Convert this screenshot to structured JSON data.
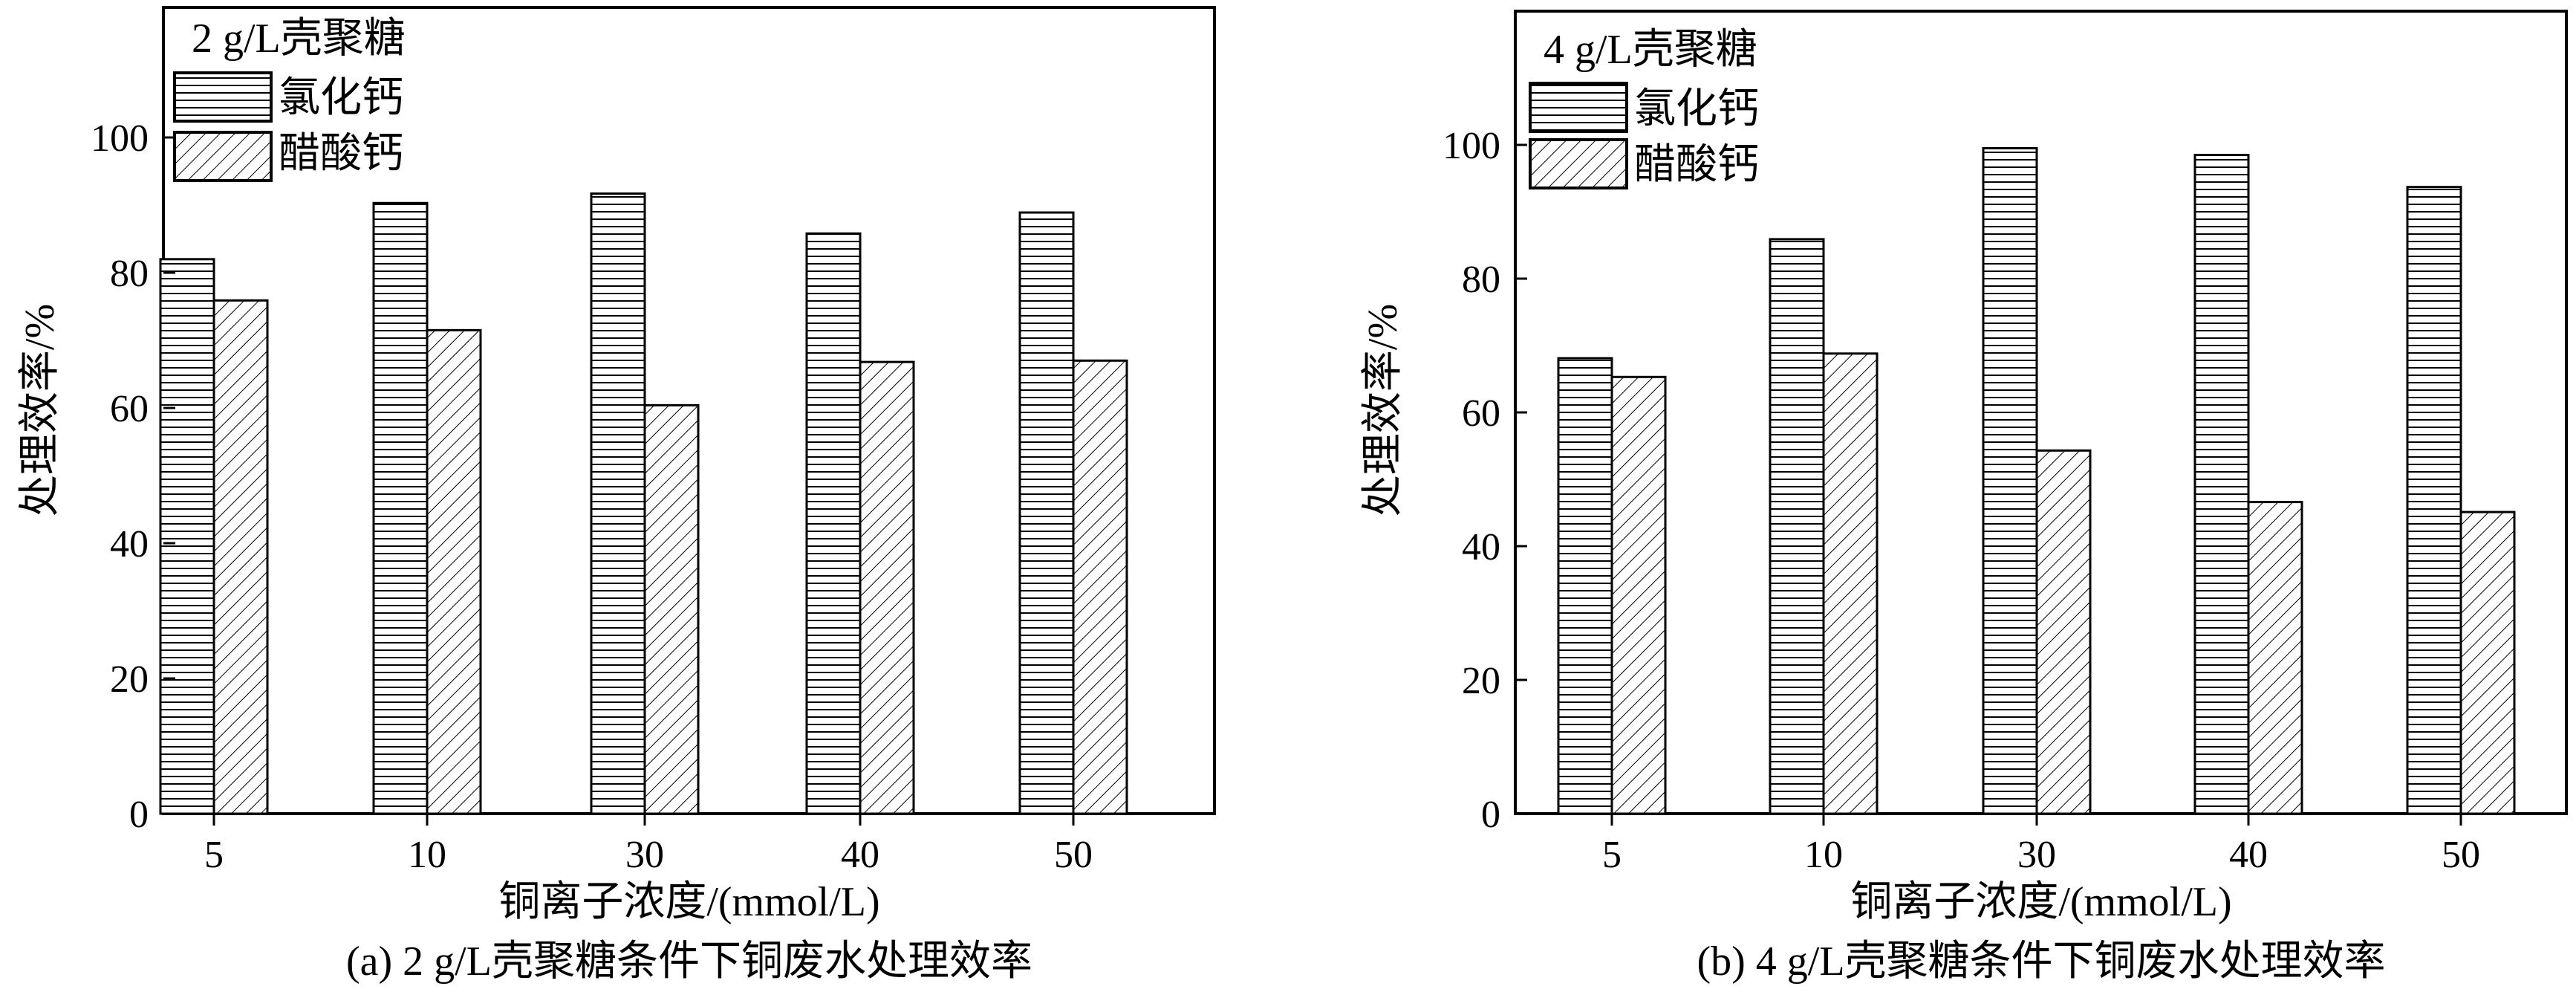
{
  "chart_data": [
    {
      "type": "bar",
      "panel_caption": "(a) 2 g/L壳聚糖条件下铜废水处理效率",
      "legend_title": "2 g/L壳聚糖",
      "categories": [
        "5",
        "10",
        "30",
        "40",
        "50"
      ],
      "series": [
        {
          "name": "氯化钙",
          "pattern": "horizontal-lines",
          "values": [
            82,
            90.3,
            91.7,
            85.8,
            88.9
          ]
        },
        {
          "name": "醋酸钙",
          "pattern": "diagonal-hatch",
          "values": [
            75.9,
            71.5,
            60.4,
            66.8,
            67.0
          ]
        }
      ],
      "xlabel": "铜离子浓度/(mmol/L)",
      "ylabel": "处理效率/%",
      "ylim": [
        0,
        100
      ],
      "yticks": [
        0,
        20,
        40,
        60,
        80,
        100
      ],
      "legend_position": "top-left",
      "grid": false
    },
    {
      "type": "bar",
      "panel_caption": "(b) 4 g/L壳聚糖条件下铜废水处理效率",
      "legend_title": "4 g/L壳聚糖",
      "categories": [
        "5",
        "10",
        "30",
        "40",
        "50"
      ],
      "series": [
        {
          "name": "氯化钙",
          "pattern": "horizontal-lines",
          "values": [
            68.1,
            85.9,
            99.5,
            98.5,
            93.7
          ]
        },
        {
          "name": "醋酸钙",
          "pattern": "diagonal-hatch",
          "values": [
            65.3,
            68.8,
            54.3,
            46.6,
            45.1
          ]
        }
      ],
      "xlabel": "铜离子浓度/(mmol/L)",
      "ylabel": "处理效率/%",
      "ylim": [
        0,
        100
      ],
      "yticks": [
        0,
        20,
        40,
        60,
        80,
        100
      ],
      "legend_position": "top-left",
      "grid": false
    }
  ]
}
